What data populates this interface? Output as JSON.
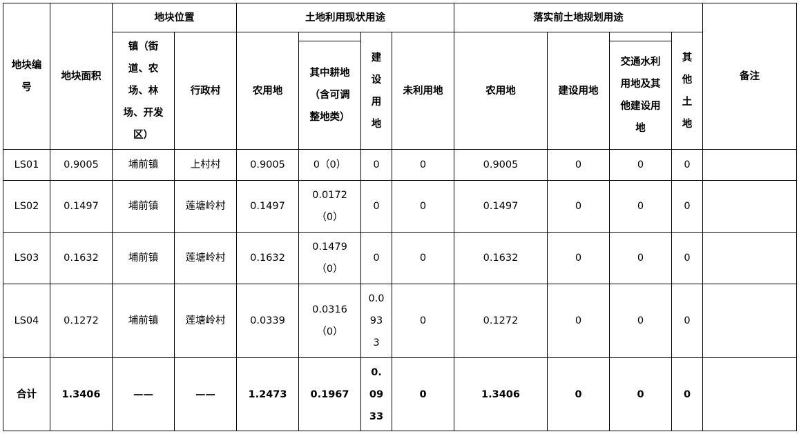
{
  "header": {
    "plot_no": "地块编\n号",
    "plot_area": "地块面积",
    "location": "地块位置",
    "town": "镇（街\n道、农\n场、林\n场、开发\n区）",
    "village": "行政村",
    "current_use": "土地利用现状用途",
    "cur_agri": "农用地",
    "cur_cultivated": "其中耕地\n（含可调\n整地类）",
    "cur_construction": "建\n设\n用\n地",
    "cur_unused": "未利用地",
    "planned_use": "落实前土地规划用途",
    "plan_agri": "农用地",
    "plan_construction": "建设用地",
    "plan_transport": "交通水利\n用地及其\n他建设用\n地",
    "plan_other": "其\n他\n土\n地",
    "remarks": "备注"
  },
  "rows": [
    {
      "id": "LS01",
      "area": "0.9005",
      "town": "埔前镇",
      "village": "上村村",
      "cur_agri": "0.9005",
      "cultivated": "0（0）",
      "construction": "0",
      "unused": "0",
      "plan_agri": "0.9005",
      "plan_construction": "0",
      "plan_transport": "0",
      "plan_other": "0",
      "remarks": ""
    },
    {
      "id": "LS02",
      "area": "0.1497",
      "town": "埔前镇",
      "village": "莲塘岭村",
      "cur_agri": "0.1497",
      "cultivated": "0.0172\n（0）",
      "construction": "0",
      "unused": "0",
      "plan_agri": "0.1497",
      "plan_construction": "0",
      "plan_transport": "0",
      "plan_other": "0",
      "remarks": ""
    },
    {
      "id": "LS03",
      "area": "0.1632",
      "town": "埔前镇",
      "village": "莲塘岭村",
      "cur_agri": "0.1632",
      "cultivated": "0.1479\n（0）",
      "construction": "0",
      "unused": "0",
      "plan_agri": "0.1632",
      "plan_construction": "0",
      "plan_transport": "0",
      "plan_other": "0",
      "remarks": ""
    },
    {
      "id": "LS04",
      "area": "0.1272",
      "town": "埔前镇",
      "village": "莲塘岭村",
      "cur_agri": "0.0339",
      "cultivated": "0.0316\n（0）",
      "construction": "0.0\n93\n3",
      "unused": "0",
      "plan_agri": "0.1272",
      "plan_construction": "0",
      "plan_transport": "0",
      "plan_other": "0",
      "remarks": ""
    }
  ],
  "total": {
    "id": "合计",
    "area": "1.3406",
    "town": "——",
    "village": "——",
    "cur_agri": "1.2473",
    "cultivated": "0.1967",
    "construction": "0.\n09\n33",
    "unused": "0",
    "plan_agri": "1.3406",
    "plan_construction": "0",
    "plan_transport": "0",
    "plan_other": "0",
    "remarks": ""
  }
}
